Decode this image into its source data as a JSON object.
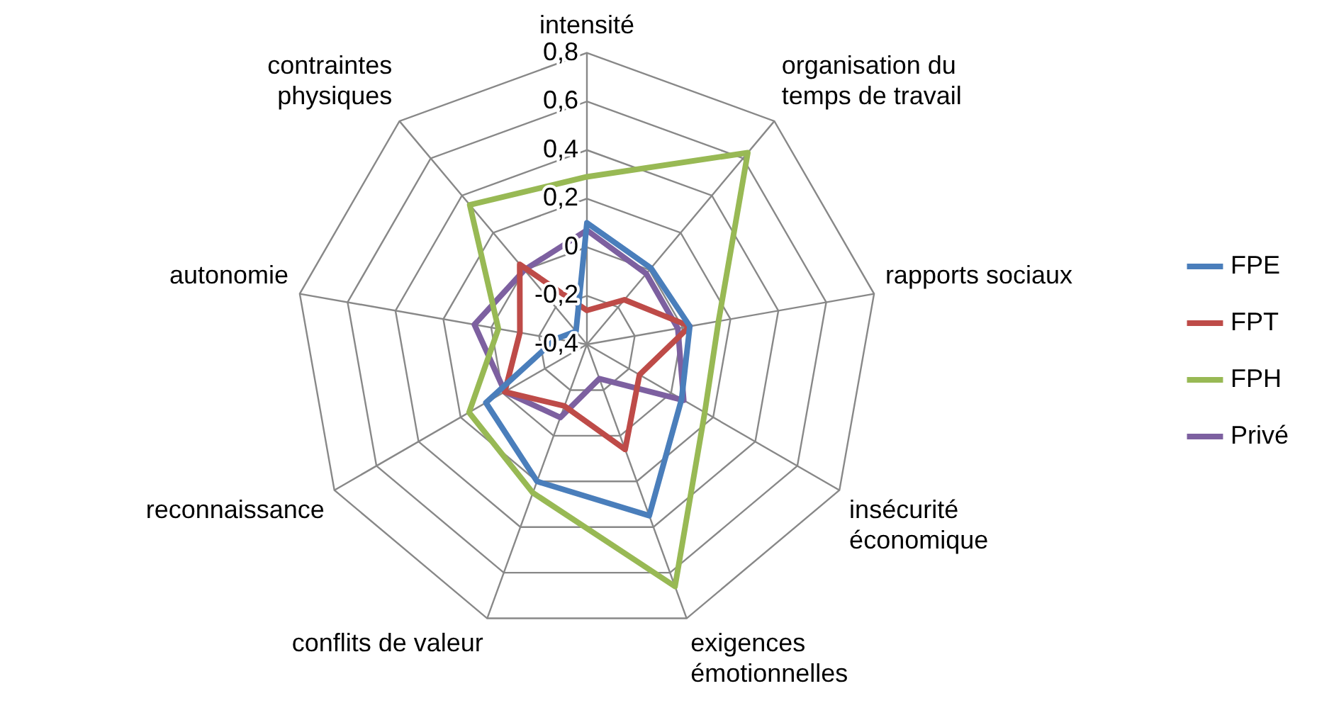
{
  "chart_data": {
    "type": "radar",
    "categories": [
      "intensité",
      "organisation du temps de travail",
      "rapports sociaux",
      "insécurité économique",
      "exigences émotionnelles",
      "conflits de valeur",
      "reconnaissance",
      "autonomie",
      "contraintes physiques"
    ],
    "series": [
      {
        "name": "FPE",
        "color": "#4a7ebb",
        "values": [
          0.1,
          0.01,
          0.03,
          0.05,
          0.35,
          0.2,
          0.08,
          -0.27,
          -0.33
        ]
      },
      {
        "name": "FPT",
        "color": "#be4b48",
        "values": [
          -0.26,
          -0.16,
          0.03,
          -0.15,
          0.06,
          -0.13,
          -0.01,
          -0.12,
          0.03
        ]
      },
      {
        "name": "FPH",
        "color": "#98b954",
        "values": [
          0.29,
          0.63,
          0.15,
          0.16,
          0.66,
          0.25,
          0.16,
          -0.03,
          0.35
        ]
      },
      {
        "name": "Privé",
        "color": "#7d60a0",
        "values": [
          0.07,
          -0.02,
          -0.02,
          0.06,
          -0.25,
          -0.08,
          -0.01,
          0.07,
          0.0
        ]
      }
    ],
    "ylim": [
      -0.4,
      0.8
    ],
    "yticks": [
      {
        "value": -0.4,
        "label": "-0,4"
      },
      {
        "value": -0.2,
        "label": "-0,2"
      },
      {
        "value": 0,
        "label": "0"
      },
      {
        "value": 0.2,
        "label": "0,2"
      },
      {
        "value": 0.4,
        "label": "0,4"
      },
      {
        "value": 0.6,
        "label": "0,6"
      },
      {
        "value": 0.8,
        "label": "0,8"
      }
    ],
    "grid": true,
    "legend": "right",
    "marker": "none",
    "line_style": "solid"
  }
}
